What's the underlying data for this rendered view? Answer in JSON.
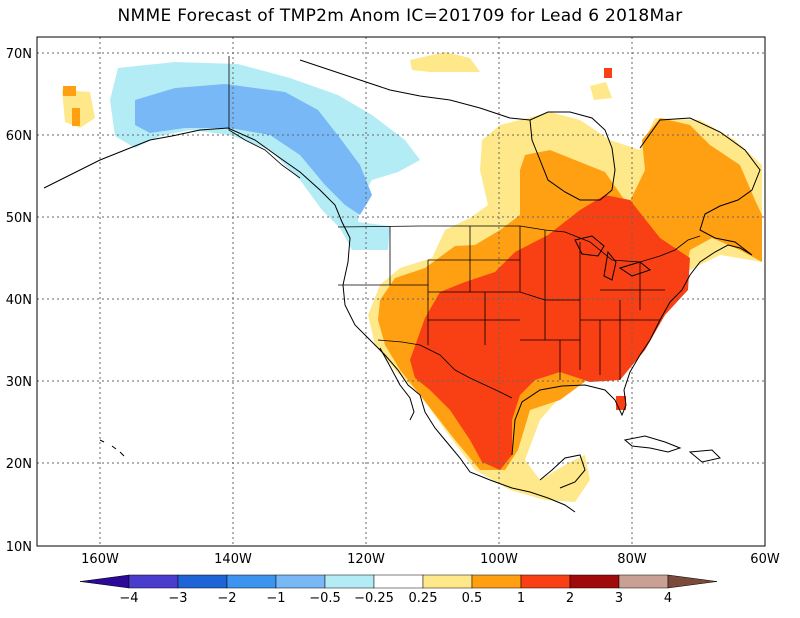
{
  "title": "NMME Forecast of TMP2m Anom  IC=201709 for Lead 6 2018Mar",
  "lat_labels": [
    "70N",
    "60N",
    "50N",
    "40N",
    "30N",
    "20N",
    "10N"
  ],
  "lon_labels": [
    "160W",
    "140W",
    "120W",
    "100W",
    "80W",
    "60W"
  ],
  "colorbar": {
    "colors": [
      "#2a0a96",
      "#4a3ccc",
      "#1f64d6",
      "#3c94ee",
      "#78b8f6",
      "#b4ecf6",
      "#ffffff",
      "#ffe88a",
      "#ffa012",
      "#f84014",
      "#a00a0a",
      "#c8a094",
      "#7a4a3a"
    ],
    "labels": [
      "−4",
      "−3",
      "−2",
      "−1",
      "−0.5",
      "−0.25",
      "0.25",
      "0.5",
      "1",
      "2",
      "3",
      "4"
    ]
  },
  "anomaly_colors": {
    "cold_strong": "#78b8f6",
    "cold_weak": "#b4ecf6",
    "warm_weak": "#ffe88a",
    "warm_mid": "#ffa012",
    "warm_strong": "#f84014"
  }
}
